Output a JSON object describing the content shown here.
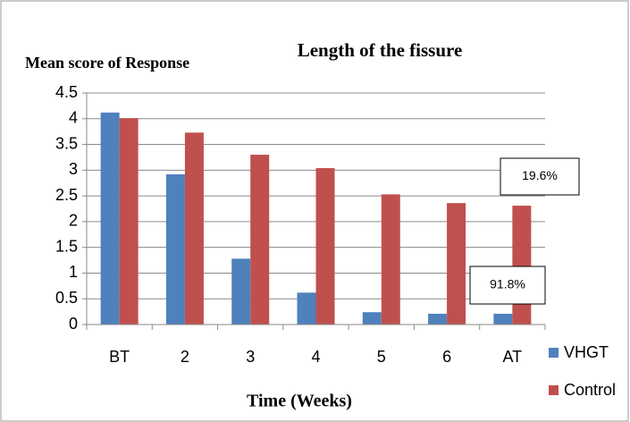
{
  "chart_data": {
    "type": "bar",
    "title": "Length of the fissure",
    "y_label": "Mean score of Response",
    "x_label": "Time (Weeks)",
    "categories": [
      "BT",
      "2",
      "3",
      "4",
      "5",
      "6",
      "AT"
    ],
    "series": [
      {
        "name": "VHGT",
        "color": "#4f81bd",
        "values": [
          4.12,
          2.92,
          1.28,
          0.62,
          0.24,
          0.21,
          0.21
        ]
      },
      {
        "name": "Control",
        "color": "#c0504d",
        "values": [
          4.01,
          3.73,
          3.3,
          3.04,
          2.53,
          2.36,
          2.31
        ]
      }
    ],
    "annotations": [
      "19.6%",
      "91.8%"
    ],
    "ylim": [
      0,
      4.5
    ],
    "yticks": [
      0,
      0.5,
      1,
      1.5,
      2,
      2.5,
      3,
      3.5,
      4,
      4.5
    ],
    "grid": true
  }
}
